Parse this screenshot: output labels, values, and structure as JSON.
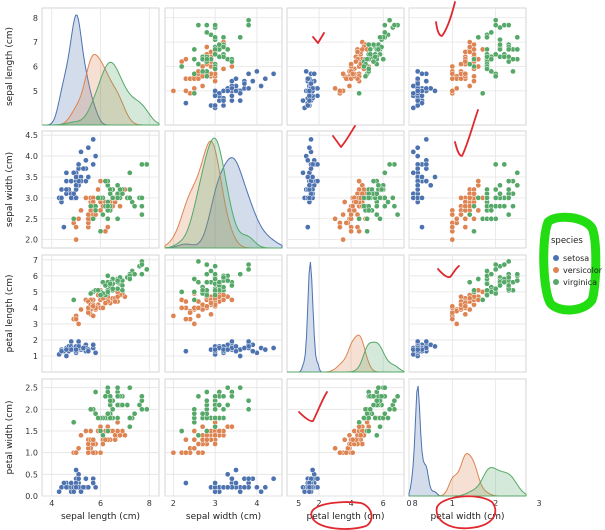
{
  "chart_data": {
    "type": "scatter",
    "kind": "pairplot",
    "variables": [
      "sepal length (cm)",
      "sepal width (cm)",
      "petal length (cm)",
      "petal width (cm)"
    ],
    "axis_ranges": {
      "sepal length (cm)": [
        3.6,
        8.4
      ],
      "sepal width (cm)": [
        1.8,
        4.6
      ],
      "petal length (cm)": [
        0.0,
        7.3
      ],
      "petal width (cm)": [
        0.0,
        2.7
      ]
    },
    "x_ticks": {
      "sepal length (cm)": [
        "4",
        "6",
        "8"
      ],
      "sepal width (cm)": [
        "2",
        "3",
        "4",
        "5"
      ],
      "petal length (cm)": [
        "2",
        "4",
        "6",
        "8"
      ],
      "petal width (cm)": [
        "0",
        "1",
        "2",
        "3"
      ]
    },
    "y_ticks": {
      "sepal length (cm)": [
        "5",
        "6",
        "7",
        "8"
      ],
      "sepal width (cm)": [
        "2.0",
        "2.5",
        "3.0",
        "3.5",
        "4.0",
        "4.5"
      ],
      "petal length (cm)": [
        "1",
        "2",
        "3",
        "4",
        "5",
        "6",
        "7"
      ],
      "petal width (cm)": [
        "0.0",
        "0.5",
        "1.0",
        "1.5",
        "2.0",
        "2.5"
      ]
    },
    "grid": true,
    "legend": {
      "title": "species",
      "placement": "right",
      "entries": [
        "setosa",
        "versicolor",
        "virginica"
      ]
    },
    "series": [
      {
        "name": "setosa",
        "color": "#4c72b0",
        "columns": [
          "sepal length (cm)",
          "sepal width (cm)",
          "petal length (cm)",
          "petal width (cm)"
        ],
        "points": [
          [
            5.1,
            3.5,
            1.4,
            0.2
          ],
          [
            4.9,
            3.0,
            1.4,
            0.2
          ],
          [
            4.7,
            3.2,
            1.3,
            0.2
          ],
          [
            4.6,
            3.1,
            1.5,
            0.2
          ],
          [
            5.0,
            3.6,
            1.4,
            0.2
          ],
          [
            5.4,
            3.9,
            1.7,
            0.4
          ],
          [
            4.6,
            3.4,
            1.4,
            0.3
          ],
          [
            5.0,
            3.4,
            1.5,
            0.2
          ],
          [
            4.4,
            2.9,
            1.4,
            0.2
          ],
          [
            4.9,
            3.1,
            1.5,
            0.1
          ],
          [
            5.4,
            3.7,
            1.5,
            0.2
          ],
          [
            4.8,
            3.4,
            1.6,
            0.2
          ],
          [
            4.8,
            3.0,
            1.4,
            0.1
          ],
          [
            4.3,
            3.0,
            1.1,
            0.1
          ],
          [
            5.8,
            4.0,
            1.2,
            0.2
          ],
          [
            5.7,
            4.4,
            1.5,
            0.4
          ],
          [
            5.4,
            3.9,
            1.3,
            0.4
          ],
          [
            5.1,
            3.5,
            1.4,
            0.3
          ],
          [
            5.7,
            3.8,
            1.7,
            0.3
          ],
          [
            5.1,
            3.8,
            1.5,
            0.3
          ],
          [
            5.4,
            3.4,
            1.7,
            0.2
          ],
          [
            5.1,
            3.7,
            1.5,
            0.4
          ],
          [
            4.6,
            3.6,
            1.0,
            0.2
          ],
          [
            5.1,
            3.3,
            1.7,
            0.5
          ],
          [
            4.8,
            3.4,
            1.9,
            0.2
          ],
          [
            5.0,
            3.0,
            1.6,
            0.2
          ],
          [
            5.0,
            3.4,
            1.6,
            0.4
          ],
          [
            5.2,
            3.5,
            1.5,
            0.2
          ],
          [
            5.2,
            3.4,
            1.4,
            0.2
          ],
          [
            4.7,
            3.2,
            1.6,
            0.2
          ],
          [
            4.8,
            3.1,
            1.6,
            0.2
          ],
          [
            5.4,
            3.4,
            1.5,
            0.4
          ],
          [
            5.2,
            4.1,
            1.5,
            0.1
          ],
          [
            5.5,
            4.2,
            1.4,
            0.2
          ],
          [
            4.9,
            3.1,
            1.5,
            0.2
          ],
          [
            5.0,
            3.2,
            1.2,
            0.2
          ],
          [
            5.5,
            3.5,
            1.3,
            0.2
          ],
          [
            4.9,
            3.6,
            1.4,
            0.1
          ],
          [
            4.4,
            3.0,
            1.3,
            0.2
          ],
          [
            5.1,
            3.4,
            1.5,
            0.2
          ],
          [
            5.0,
            3.5,
            1.3,
            0.3
          ],
          [
            4.5,
            2.3,
            1.3,
            0.3
          ],
          [
            4.4,
            3.2,
            1.3,
            0.2
          ],
          [
            5.0,
            3.5,
            1.6,
            0.6
          ],
          [
            5.1,
            3.8,
            1.9,
            0.4
          ],
          [
            4.8,
            3.0,
            1.4,
            0.3
          ],
          [
            5.1,
            3.8,
            1.6,
            0.2
          ],
          [
            4.6,
            3.2,
            1.4,
            0.2
          ],
          [
            5.3,
            3.7,
            1.5,
            0.2
          ],
          [
            5.0,
            3.3,
            1.4,
            0.2
          ]
        ]
      },
      {
        "name": "versicolor",
        "color": "#dd8452",
        "columns": [
          "sepal length (cm)",
          "sepal width (cm)",
          "petal length (cm)",
          "petal width (cm)"
        ],
        "points": [
          [
            7.0,
            3.2,
            4.7,
            1.4
          ],
          [
            6.4,
            3.2,
            4.5,
            1.5
          ],
          [
            6.9,
            3.1,
            4.9,
            1.5
          ],
          [
            5.5,
            2.3,
            4.0,
            1.3
          ],
          [
            6.5,
            2.8,
            4.6,
            1.5
          ],
          [
            5.7,
            2.8,
            4.5,
            1.3
          ],
          [
            6.3,
            3.3,
            4.7,
            1.6
          ],
          [
            4.9,
            2.4,
            3.3,
            1.0
          ],
          [
            6.6,
            2.9,
            4.6,
            1.3
          ],
          [
            5.2,
            2.7,
            3.9,
            1.4
          ],
          [
            5.0,
            2.0,
            3.5,
            1.0
          ],
          [
            5.9,
            3.0,
            4.2,
            1.5
          ],
          [
            6.0,
            2.2,
            4.0,
            1.0
          ],
          [
            6.1,
            2.9,
            4.7,
            1.4
          ],
          [
            5.6,
            2.9,
            3.6,
            1.3
          ],
          [
            6.7,
            3.1,
            4.4,
            1.4
          ],
          [
            5.6,
            3.0,
            4.5,
            1.5
          ],
          [
            5.8,
            2.7,
            4.1,
            1.0
          ],
          [
            6.2,
            2.2,
            4.5,
            1.5
          ],
          [
            5.6,
            2.5,
            3.9,
            1.1
          ],
          [
            5.9,
            3.2,
            4.8,
            1.8
          ],
          [
            6.1,
            2.8,
            4.0,
            1.3
          ],
          [
            6.3,
            2.5,
            4.9,
            1.5
          ],
          [
            6.1,
            2.8,
            4.7,
            1.2
          ],
          [
            6.4,
            2.9,
            4.3,
            1.3
          ],
          [
            6.6,
            3.0,
            4.4,
            1.4
          ],
          [
            6.8,
            2.8,
            4.8,
            1.4
          ],
          [
            6.7,
            3.0,
            5.0,
            1.7
          ],
          [
            6.0,
            2.9,
            4.5,
            1.5
          ],
          [
            5.7,
            2.6,
            3.5,
            1.0
          ],
          [
            5.5,
            2.4,
            3.8,
            1.1
          ],
          [
            5.5,
            2.4,
            3.7,
            1.0
          ],
          [
            5.8,
            2.7,
            3.9,
            1.2
          ],
          [
            6.0,
            2.7,
            5.1,
            1.6
          ],
          [
            5.4,
            3.0,
            4.5,
            1.5
          ],
          [
            6.0,
            3.4,
            4.5,
            1.6
          ],
          [
            6.7,
            3.1,
            4.7,
            1.5
          ],
          [
            6.3,
            2.3,
            4.4,
            1.3
          ],
          [
            5.6,
            3.0,
            4.1,
            1.3
          ],
          [
            5.5,
            2.5,
            4.0,
            1.3
          ],
          [
            5.5,
            2.6,
            4.4,
            1.2
          ],
          [
            6.1,
            3.0,
            4.6,
            1.4
          ],
          [
            5.8,
            2.6,
            4.0,
            1.2
          ],
          [
            5.0,
            2.3,
            3.3,
            1.0
          ],
          [
            5.6,
            2.7,
            4.2,
            1.3
          ],
          [
            5.7,
            3.0,
            4.2,
            1.2
          ],
          [
            5.7,
            2.9,
            4.2,
            1.3
          ],
          [
            6.2,
            2.9,
            4.3,
            1.3
          ],
          [
            5.1,
            2.5,
            3.0,
            1.1
          ],
          [
            5.7,
            2.8,
            4.1,
            1.3
          ]
        ]
      },
      {
        "name": "virginica",
        "color": "#55a868",
        "columns": [
          "sepal length (cm)",
          "sepal width (cm)",
          "petal length (cm)",
          "petal width (cm)"
        ],
        "points": [
          [
            6.3,
            3.3,
            6.0,
            2.5
          ],
          [
            5.8,
            2.7,
            5.1,
            1.9
          ],
          [
            7.1,
            3.0,
            5.9,
            2.1
          ],
          [
            6.3,
            2.9,
            5.6,
            1.8
          ],
          [
            6.5,
            3.0,
            5.8,
            2.2
          ],
          [
            7.6,
            3.0,
            6.6,
            2.1
          ],
          [
            4.9,
            2.5,
            4.5,
            1.7
          ],
          [
            7.3,
            2.9,
            6.3,
            1.8
          ],
          [
            6.7,
            2.5,
            5.8,
            1.8
          ],
          [
            7.2,
            3.6,
            6.1,
            2.5
          ],
          [
            6.5,
            3.2,
            5.1,
            2.0
          ],
          [
            6.4,
            2.7,
            5.3,
            1.9
          ],
          [
            6.8,
            3.0,
            5.5,
            2.1
          ],
          [
            5.7,
            2.5,
            5.0,
            2.0
          ],
          [
            5.8,
            2.8,
            5.1,
            2.4
          ],
          [
            6.4,
            3.2,
            5.3,
            2.3
          ],
          [
            6.5,
            3.0,
            5.5,
            1.8
          ],
          [
            7.7,
            3.8,
            6.7,
            2.2
          ],
          [
            7.7,
            2.6,
            6.9,
            2.3
          ],
          [
            6.0,
            2.2,
            5.0,
            1.5
          ],
          [
            6.9,
            3.2,
            5.7,
            2.3
          ],
          [
            5.6,
            2.8,
            4.9,
            2.0
          ],
          [
            7.7,
            2.8,
            6.7,
            2.0
          ],
          [
            6.3,
            2.7,
            4.9,
            1.8
          ],
          [
            6.7,
            3.3,
            5.7,
            2.1
          ],
          [
            7.2,
            3.2,
            6.0,
            1.8
          ],
          [
            6.2,
            2.8,
            4.8,
            1.8
          ],
          [
            6.1,
            3.0,
            4.9,
            1.8
          ],
          [
            6.4,
            2.8,
            5.6,
            2.1
          ],
          [
            7.2,
            3.0,
            5.8,
            1.6
          ],
          [
            7.4,
            2.8,
            6.1,
            1.9
          ],
          [
            7.9,
            3.8,
            6.4,
            2.0
          ],
          [
            6.4,
            2.8,
            5.6,
            2.2
          ],
          [
            6.3,
            2.8,
            5.1,
            1.5
          ],
          [
            6.1,
            2.6,
            5.6,
            1.4
          ],
          [
            7.7,
            3.0,
            6.1,
            2.3
          ],
          [
            6.3,
            3.4,
            5.6,
            2.4
          ],
          [
            6.4,
            3.1,
            5.5,
            1.8
          ],
          [
            6.0,
            3.0,
            4.8,
            1.8
          ],
          [
            6.9,
            3.1,
            5.4,
            2.1
          ],
          [
            6.7,
            3.1,
            5.6,
            2.4
          ],
          [
            6.9,
            3.1,
            5.1,
            2.3
          ],
          [
            5.8,
            2.7,
            5.1,
            1.9
          ],
          [
            6.8,
            3.2,
            5.9,
            2.3
          ],
          [
            6.7,
            3.3,
            5.7,
            2.5
          ],
          [
            6.7,
            3.0,
            5.2,
            2.3
          ],
          [
            6.3,
            2.5,
            5.0,
            1.9
          ],
          [
            6.5,
            3.0,
            5.2,
            2.0
          ],
          [
            6.2,
            3.4,
            5.4,
            2.3
          ],
          [
            5.9,
            3.0,
            5.1,
            1.8
          ]
        ]
      }
    ]
  },
  "annotations": {
    "ink_color": "#e0282e",
    "highlight_color": "#22dd11"
  }
}
